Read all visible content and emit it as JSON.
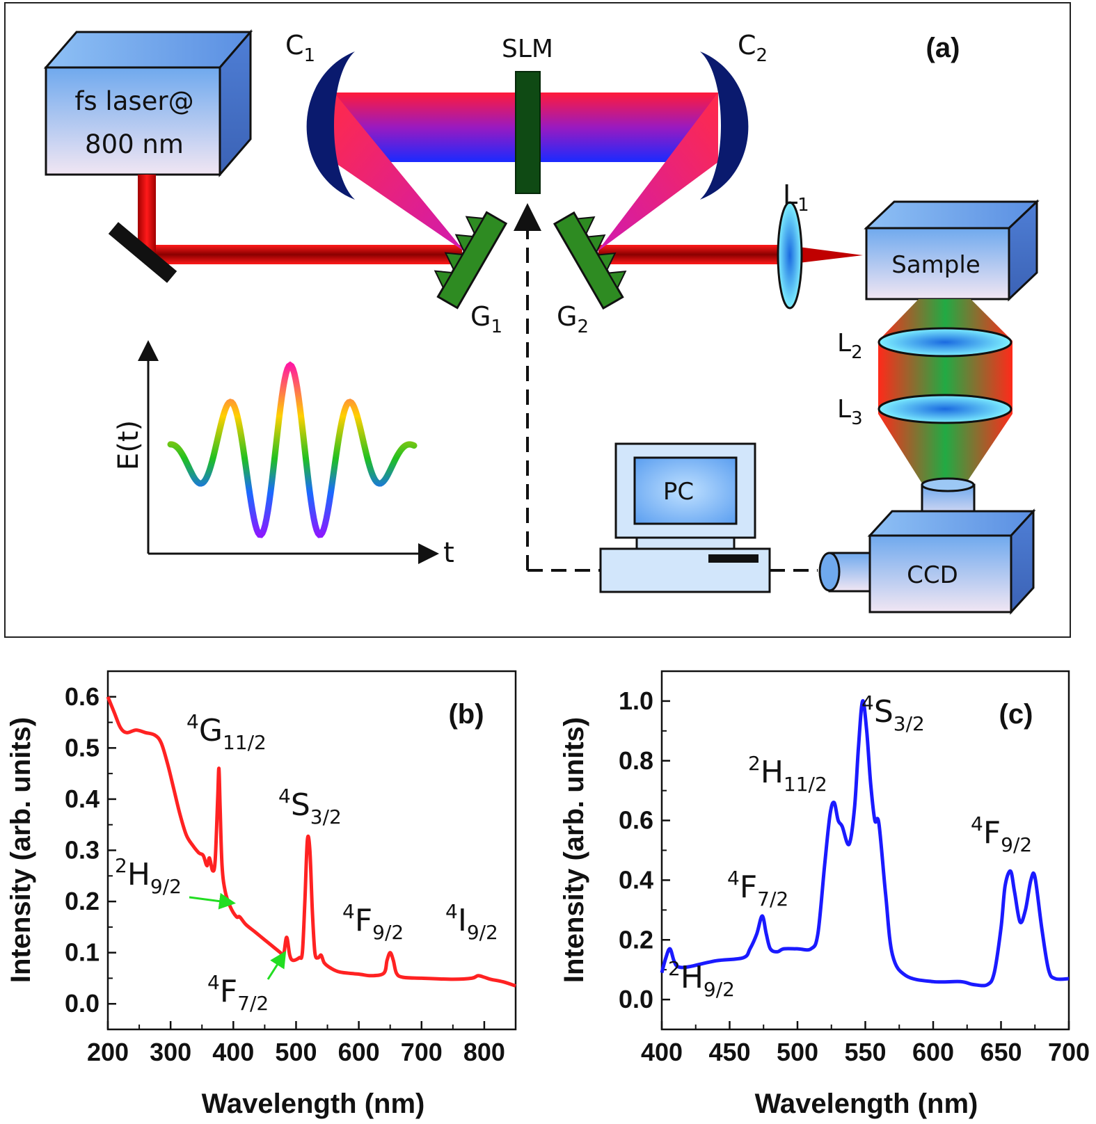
{
  "panel_a": {
    "tag": "(a)",
    "laser": {
      "line1": "fs laser@",
      "line2": "800 nm"
    },
    "slm": "SLM",
    "c1": {
      "base": "C",
      "sub": "1"
    },
    "c2": {
      "base": "C",
      "sub": "2"
    },
    "g1": {
      "base": "G",
      "sub": "1"
    },
    "g2": {
      "base": "G",
      "sub": "2"
    },
    "l1": {
      "base": "L",
      "sub": "1"
    },
    "l2": {
      "base": "L",
      "sub": "2"
    },
    "l3": {
      "base": "L",
      "sub": "3"
    },
    "sample": "Sample",
    "pc": "PC",
    "ccd": "CCD",
    "et_axis": "E(t)",
    "t_axis": "t",
    "colors": {
      "beam": "#ff1a1a",
      "mirror": "#0a1a6e",
      "grating": "#2e8b22",
      "slm": "#0f4a14",
      "box": "#7fb3f0"
    }
  },
  "chart_data": [
    {
      "type": "line",
      "tag": "(b)",
      "xlabel": "Wavelength (nm)",
      "ylabel": "Intensity (arb. units)",
      "xlim": [
        200,
        850
      ],
      "ylim": [
        -0.05,
        0.65
      ],
      "xticks": [
        "200",
        "300",
        "400",
        "500",
        "600",
        "700",
        "800"
      ],
      "yticks": [
        "0.0",
        "0.1",
        "0.2",
        "0.3",
        "0.4",
        "0.5",
        "0.6"
      ],
      "color": "#ff2222",
      "x": [
        200,
        210,
        220,
        230,
        245,
        260,
        275,
        285,
        295,
        305,
        315,
        325,
        335,
        345,
        352,
        358,
        362,
        367,
        371,
        375,
        377,
        379,
        382,
        387,
        395,
        405,
        410,
        420,
        435,
        450,
        465,
        475,
        480,
        485,
        490,
        495,
        505,
        510,
        514,
        518,
        522,
        526,
        530,
        535,
        540,
        545,
        555,
        570,
        600,
        620,
        640,
        645,
        650,
        655,
        660,
        670,
        700,
        750,
        780,
        790,
        800,
        810,
        830,
        850
      ],
      "y": [
        0.6,
        0.57,
        0.54,
        0.53,
        0.535,
        0.53,
        0.525,
        0.51,
        0.47,
        0.42,
        0.37,
        0.33,
        0.31,
        0.295,
        0.29,
        0.27,
        0.285,
        0.26,
        0.28,
        0.4,
        0.46,
        0.38,
        0.27,
        0.22,
        0.19,
        0.17,
        0.17,
        0.155,
        0.14,
        0.125,
        0.11,
        0.1,
        0.095,
        0.13,
        0.095,
        0.085,
        0.09,
        0.1,
        0.2,
        0.32,
        0.3,
        0.18,
        0.1,
        0.09,
        0.095,
        0.08,
        0.07,
        0.062,
        0.058,
        0.055,
        0.06,
        0.085,
        0.1,
        0.085,
        0.06,
        0.052,
        0.05,
        0.048,
        0.05,
        0.055,
        0.052,
        0.048,
        0.043,
        0.035
      ],
      "annotations": [
        {
          "base": "4",
          "main": "G",
          "sub": "11/2"
        },
        {
          "base": "4",
          "main": "S",
          "sub": "3/2"
        },
        {
          "base": "2",
          "main": "H",
          "sub": "9/2"
        },
        {
          "base": "4",
          "main": "F",
          "sub": "9/2"
        },
        {
          "base": "4",
          "main": "I",
          "sub": "9/2"
        },
        {
          "base": "4",
          "main": "F",
          "sub": "7/2"
        }
      ]
    },
    {
      "type": "line",
      "tag": "(c)",
      "xlabel": "Wavelength (nm)",
      "ylabel": "Intensity (arb. units)",
      "xlim": [
        400,
        700
      ],
      "ylim": [
        -0.1,
        1.1
      ],
      "xticks": [
        "400",
        "450",
        "500",
        "550",
        "600",
        "650",
        "700"
      ],
      "yticks": [
        "0.0",
        "0.2",
        "0.4",
        "0.6",
        "0.8",
        "1.0"
      ],
      "color": "#1a1aff",
      "x": [
        400,
        403,
        406,
        409,
        412,
        420,
        440,
        460,
        465,
        470,
        474,
        477,
        480,
        485,
        490,
        500,
        510,
        515,
        520,
        524,
        527,
        530,
        533,
        538,
        542,
        545,
        548,
        551,
        554,
        557,
        560,
        565,
        570,
        580,
        600,
        620,
        630,
        640,
        645,
        650,
        653,
        657,
        660,
        664,
        668,
        672,
        675,
        680,
        685,
        690,
        700
      ],
      "y": [
        0.09,
        0.14,
        0.17,
        0.13,
        0.11,
        0.11,
        0.13,
        0.14,
        0.17,
        0.22,
        0.28,
        0.22,
        0.17,
        0.16,
        0.17,
        0.17,
        0.17,
        0.22,
        0.45,
        0.62,
        0.66,
        0.6,
        0.58,
        0.52,
        0.64,
        0.85,
        1.0,
        0.9,
        0.72,
        0.6,
        0.59,
        0.35,
        0.15,
        0.08,
        0.06,
        0.06,
        0.05,
        0.05,
        0.09,
        0.24,
        0.38,
        0.43,
        0.36,
        0.26,
        0.3,
        0.4,
        0.41,
        0.24,
        0.1,
        0.07,
        0.07
      ],
      "annotations": [
        {
          "base": "2",
          "main": "H",
          "sub": "9/2"
        },
        {
          "base": "4",
          "main": "F",
          "sub": "7/2"
        },
        {
          "base": "2",
          "main": "H",
          "sub": "11/2"
        },
        {
          "base": "4",
          "main": "S",
          "sub": "3/2"
        },
        {
          "base": "4",
          "main": "F",
          "sub": "9/2"
        }
      ]
    }
  ]
}
